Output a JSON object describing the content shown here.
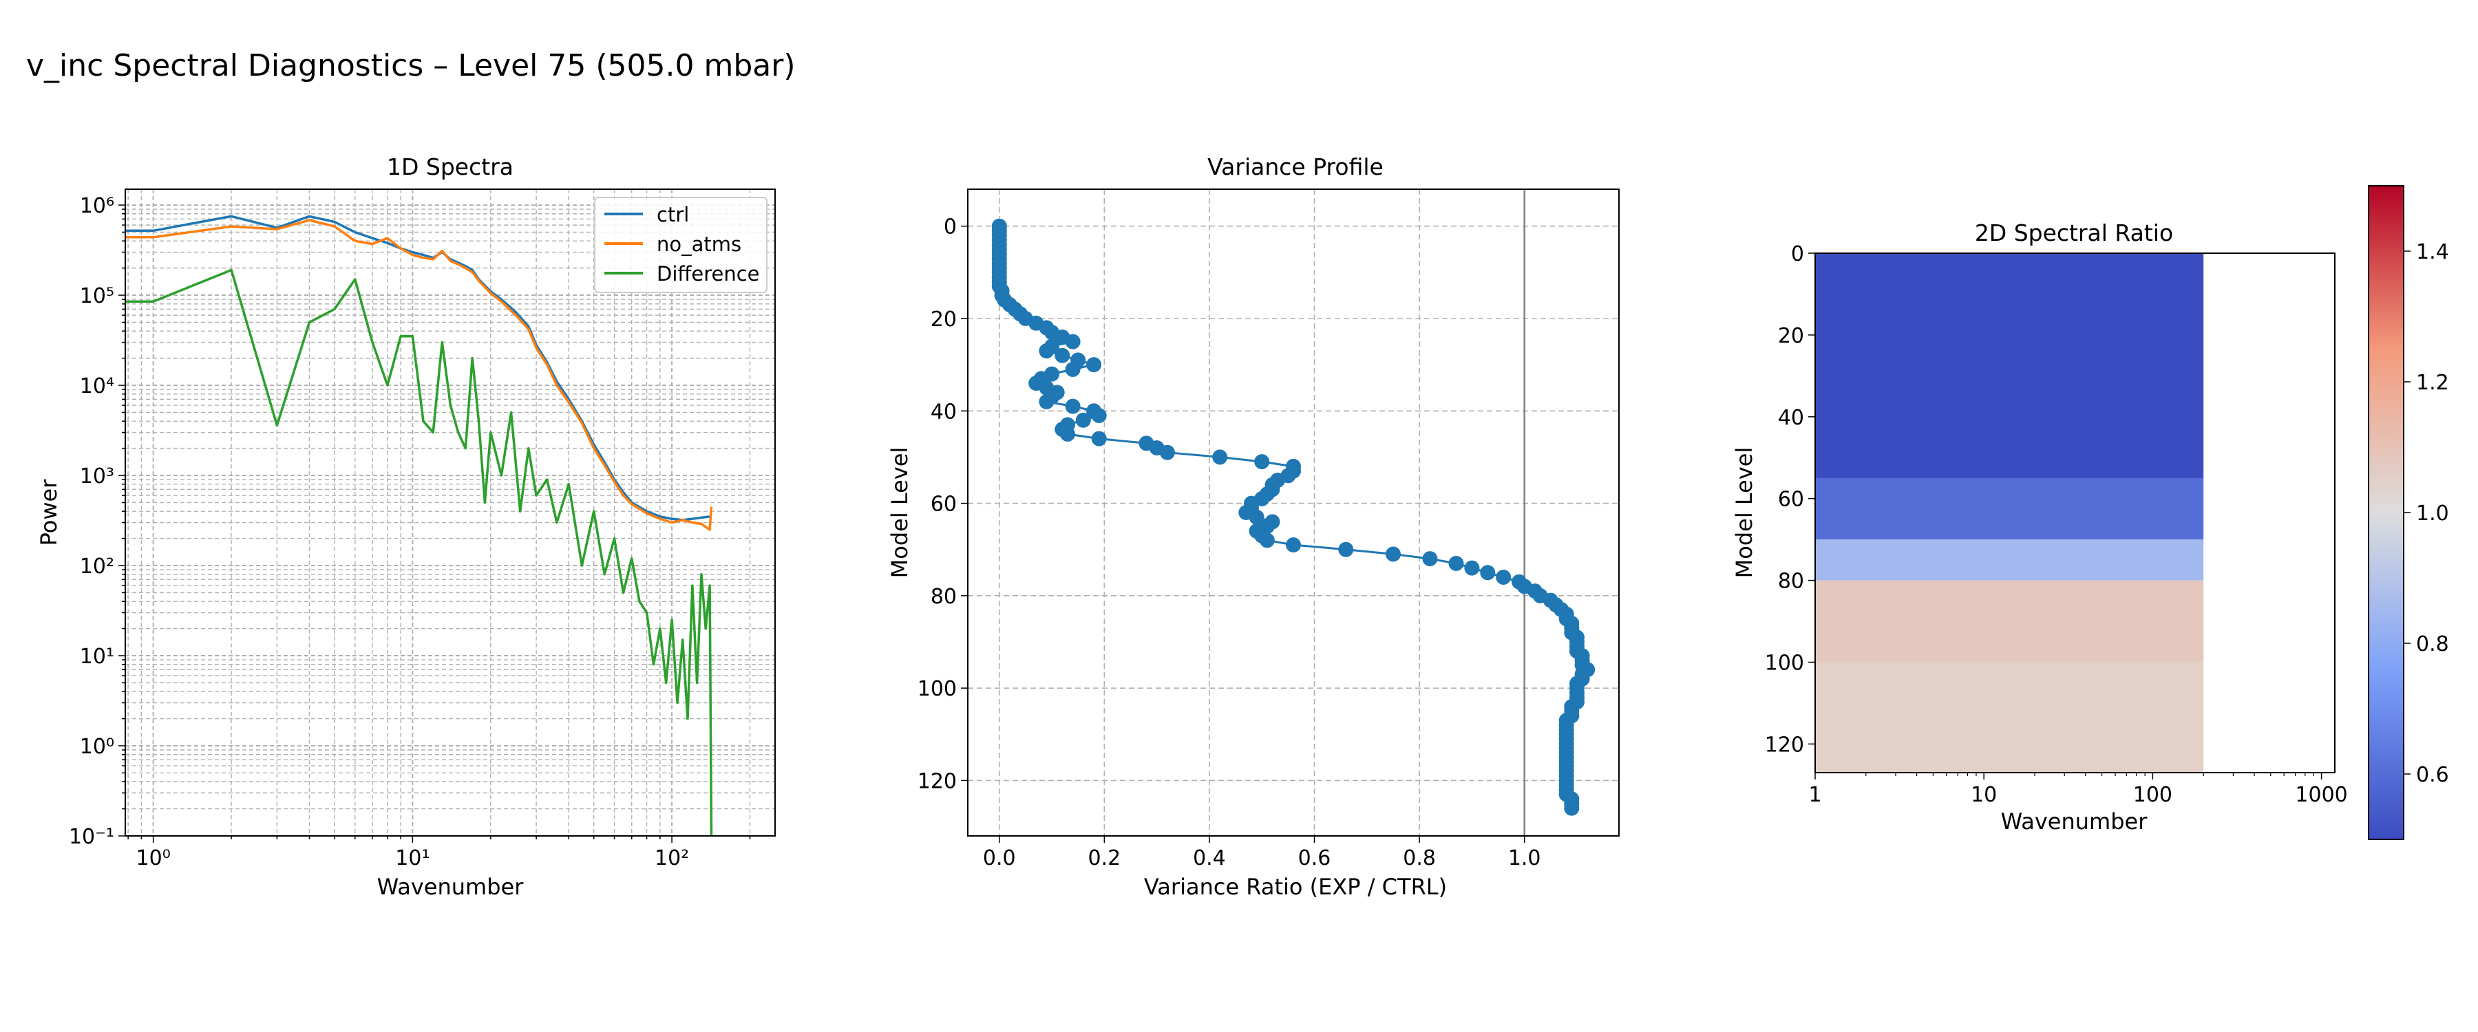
{
  "figure": {
    "title": "v_inc Spectral Diagnostics – Level 75 (505.0 mbar)"
  },
  "colors": {
    "ctrl": "#1f77b4",
    "no_atms": "#ff7f0e",
    "difference": "#2ca02c",
    "profile": "#1f77b4",
    "grid": "#b0b0b0",
    "reference_line": "#808080",
    "colormap": "coolwarm"
  },
  "chart_data": [
    {
      "type": "line",
      "title": "1D Spectra",
      "xlabel": "Wavenumber",
      "ylabel": "Power",
      "xscale": "log",
      "yscale": "log",
      "xlim": [
        0.78,
        250
      ],
      "ylim": [
        0.1,
        1500000
      ],
      "xticks": [
        1,
        10,
        100
      ],
      "xtick_labels": [
        "10⁰",
        "10¹",
        "10²"
      ],
      "yticks": [
        0.1,
        1,
        10,
        100,
        1000,
        10000,
        100000,
        1000000
      ],
      "ytick_labels": [
        "10⁻¹",
        "10⁰",
        "10¹",
        "10²",
        "10³",
        "10⁴",
        "10⁵",
        "10⁶"
      ],
      "grid": "both major and minor, dashed",
      "legend_position": "top-right",
      "series": [
        {
          "name": "ctrl",
          "x": [
            0.78,
            1,
            2,
            3,
            4,
            5,
            6,
            7,
            8,
            9,
            10,
            11,
            12,
            13,
            14,
            15,
            16,
            17,
            18,
            20,
            22,
            25,
            28,
            30,
            33,
            36,
            40,
            45,
            50,
            55,
            60,
            65,
            70,
            80,
            90,
            100,
            110,
            120,
            130,
            140
          ],
          "y": [
            520000,
            520000,
            750000,
            560000,
            750000,
            650000,
            500000,
            430000,
            380000,
            330000,
            300000,
            280000,
            260000,
            300000,
            250000,
            230000,
            210000,
            190000,
            150000,
            110000,
            90000,
            65000,
            45000,
            28000,
            18000,
            11000,
            7000,
            4000,
            2200,
            1400,
            900,
            650,
            500,
            400,
            350,
            330,
            320,
            330,
            340,
            350
          ]
        },
        {
          "name": "no_atms",
          "x": [
            0.78,
            1,
            2,
            3,
            4,
            5,
            6,
            7,
            8,
            9,
            10,
            11,
            12,
            13,
            14,
            15,
            16,
            17,
            18,
            20,
            22,
            25,
            28,
            30,
            33,
            36,
            40,
            45,
            50,
            55,
            60,
            65,
            70,
            80,
            90,
            100,
            110,
            120,
            130,
            140,
            142
          ],
          "y": [
            440000,
            440000,
            580000,
            540000,
            680000,
            580000,
            400000,
            370000,
            430000,
            330000,
            280000,
            260000,
            250000,
            310000,
            240000,
            220000,
            200000,
            180000,
            145000,
            105000,
            85000,
            60000,
            42000,
            26000,
            17000,
            10000,
            6500,
            3800,
            2000,
            1300,
            850,
            600,
            480,
            380,
            330,
            300,
            320,
            300,
            290,
            250,
            450
          ]
        },
        {
          "name": "Difference",
          "x": [
            0.78,
            1,
            2,
            3,
            4,
            5,
            6,
            7,
            8,
            9,
            10,
            11,
            12,
            13,
            14,
            15,
            16,
            17,
            18,
            19,
            20,
            22,
            24,
            26,
            28,
            30,
            33,
            36,
            40,
            45,
            50,
            55,
            60,
            65,
            70,
            75,
            80,
            85,
            90,
            95,
            100,
            105,
            110,
            115,
            120,
            125,
            130,
            135,
            140,
            142
          ],
          "y": [
            85000,
            85000,
            190000,
            3600,
            50000,
            70000,
            150000,
            30000,
            10000,
            35000,
            35000,
            4000,
            3000,
            30000,
            6000,
            3000,
            2000,
            20000,
            4000,
            500,
            3000,
            1000,
            5000,
            400,
            2000,
            600,
            900,
            300,
            800,
            100,
            400,
            80,
            200,
            50,
            120,
            40,
            30,
            8,
            20,
            5,
            25,
            3,
            15,
            2,
            60,
            5,
            80,
            20,
            60,
            0.1
          ]
        }
      ]
    },
    {
      "type": "scatter",
      "title": "Variance Profile",
      "xlabel": "Variance Ratio (EXP / CTRL)",
      "ylabel": "Model Level",
      "xlim": [
        -0.06,
        1.18
      ],
      "ylim": [
        132,
        -8
      ],
      "xticks": [
        0.0,
        0.2,
        0.4,
        0.6,
        0.8,
        1.0
      ],
      "xtick_labels": [
        "0.0",
        "0.2",
        "0.4",
        "0.6",
        "0.8",
        "1.0"
      ],
      "yticks": [
        0,
        20,
        40,
        60,
        80,
        100,
        120
      ],
      "ytick_labels": [
        "0",
        "20",
        "40",
        "60",
        "80",
        "100",
        "120"
      ],
      "grid": "dashed",
      "reference_line_x": 1.0,
      "points": [
        [
          0.0,
          0
        ],
        [
          0.0,
          1
        ],
        [
          0.0,
          2
        ],
        [
          0.0,
          3
        ],
        [
          0.0,
          4
        ],
        [
          0.0,
          5
        ],
        [
          0.0,
          6
        ],
        [
          0.0,
          7
        ],
        [
          0.0,
          8
        ],
        [
          0.0,
          9
        ],
        [
          0.0,
          10
        ],
        [
          0.0,
          11
        ],
        [
          0.0,
          12
        ],
        [
          0.0,
          13
        ],
        [
          0.005,
          14
        ],
        [
          0.005,
          15
        ],
        [
          0.01,
          16
        ],
        [
          0.02,
          17
        ],
        [
          0.03,
          18
        ],
        [
          0.04,
          19
        ],
        [
          0.05,
          20
        ],
        [
          0.07,
          21
        ],
        [
          0.09,
          22
        ],
        [
          0.1,
          23
        ],
        [
          0.12,
          24
        ],
        [
          0.14,
          25
        ],
        [
          0.1,
          26
        ],
        [
          0.09,
          27
        ],
        [
          0.12,
          28
        ],
        [
          0.15,
          29
        ],
        [
          0.18,
          30
        ],
        [
          0.14,
          31
        ],
        [
          0.1,
          32
        ],
        [
          0.08,
          33
        ],
        [
          0.07,
          34
        ],
        [
          0.09,
          35
        ],
        [
          0.11,
          36
        ],
        [
          0.1,
          37
        ],
        [
          0.09,
          38
        ],
        [
          0.14,
          39
        ],
        [
          0.18,
          40
        ],
        [
          0.19,
          41
        ],
        [
          0.16,
          42
        ],
        [
          0.13,
          43
        ],
        [
          0.12,
          44
        ],
        [
          0.13,
          45
        ],
        [
          0.19,
          46
        ],
        [
          0.28,
          47
        ],
        [
          0.3,
          48
        ],
        [
          0.32,
          49
        ],
        [
          0.42,
          50
        ],
        [
          0.5,
          51
        ],
        [
          0.56,
          52
        ],
        [
          0.56,
          53
        ],
        [
          0.55,
          54
        ],
        [
          0.53,
          55
        ],
        [
          0.52,
          56
        ],
        [
          0.52,
          57
        ],
        [
          0.51,
          58
        ],
        [
          0.5,
          59
        ],
        [
          0.48,
          60
        ],
        [
          0.48,
          61
        ],
        [
          0.47,
          62
        ],
        [
          0.49,
          63
        ],
        [
          0.52,
          64
        ],
        [
          0.51,
          65
        ],
        [
          0.49,
          66
        ],
        [
          0.5,
          67
        ],
        [
          0.51,
          68
        ],
        [
          0.56,
          69
        ],
        [
          0.66,
          70
        ],
        [
          0.75,
          71
        ],
        [
          0.82,
          72
        ],
        [
          0.87,
          73
        ],
        [
          0.9,
          74
        ],
        [
          0.93,
          75
        ],
        [
          0.96,
          76
        ],
        [
          0.99,
          77
        ],
        [
          1.0,
          78
        ],
        [
          1.02,
          79
        ],
        [
          1.03,
          80
        ],
        [
          1.05,
          81
        ],
        [
          1.06,
          82
        ],
        [
          1.07,
          83
        ],
        [
          1.08,
          84
        ],
        [
          1.08,
          85
        ],
        [
          1.09,
          86
        ],
        [
          1.09,
          87
        ],
        [
          1.09,
          88
        ],
        [
          1.1,
          89
        ],
        [
          1.1,
          90
        ],
        [
          1.1,
          91
        ],
        [
          1.1,
          92
        ],
        [
          1.11,
          93
        ],
        [
          1.11,
          94
        ],
        [
          1.11,
          95
        ],
        [
          1.12,
          96
        ],
        [
          1.11,
          97
        ],
        [
          1.11,
          98
        ],
        [
          1.1,
          99
        ],
        [
          1.1,
          100
        ],
        [
          1.1,
          101
        ],
        [
          1.1,
          102
        ],
        [
          1.1,
          103
        ],
        [
          1.09,
          104
        ],
        [
          1.09,
          105
        ],
        [
          1.09,
          106
        ],
        [
          1.08,
          107
        ],
        [
          1.08,
          108
        ],
        [
          1.08,
          109
        ],
        [
          1.08,
          110
        ],
        [
          1.08,
          111
        ],
        [
          1.08,
          112
        ],
        [
          1.08,
          113
        ],
        [
          1.08,
          114
        ],
        [
          1.08,
          115
        ],
        [
          1.08,
          116
        ],
        [
          1.08,
          117
        ],
        [
          1.08,
          118
        ],
        [
          1.08,
          119
        ],
        [
          1.08,
          120
        ],
        [
          1.08,
          121
        ],
        [
          1.08,
          122
        ],
        [
          1.08,
          123
        ],
        [
          1.09,
          124
        ],
        [
          1.09,
          125
        ],
        [
          1.09,
          126
        ]
      ]
    },
    {
      "type": "heatmap",
      "title": "2D Spectral Ratio",
      "xlabel": "Wavenumber",
      "ylabel": "Model Level",
      "xscale": "log",
      "xlim": [
        1,
        1200
      ],
      "ylim": [
        127,
        0
      ],
      "xticks": [
        1,
        10,
        100,
        1000
      ],
      "xtick_labels": [
        "1",
        "10",
        "100",
        "1000"
      ],
      "yticks": [
        0,
        20,
        40,
        60,
        80,
        100,
        120
      ],
      "ytick_labels": [
        "0",
        "20",
        "40",
        "60",
        "80",
        "100",
        "120"
      ],
      "data_extent_wavenumber": [
        1,
        200
      ],
      "value_range": [
        0.5,
        1.5
      ],
      "colorbar_ticks": [
        0.6,
        0.8,
        1.0,
        1.2,
        1.4
      ],
      "colorbar_tick_labels": [
        "0.6",
        "0.8",
        "1.0",
        "1.2",
        "1.4"
      ],
      "level_bands": [
        {
          "levels": [
            0,
            55
          ],
          "ratio": 0.5
        },
        {
          "levels": [
            55,
            70
          ],
          "ratio": 0.6
        },
        {
          "levels": [
            70,
            80
          ],
          "ratio": 0.85
        },
        {
          "levels": [
            80,
            100
          ],
          "ratio": 1.08
        },
        {
          "levels": [
            100,
            127
          ],
          "ratio": 1.05
        }
      ]
    }
  ]
}
